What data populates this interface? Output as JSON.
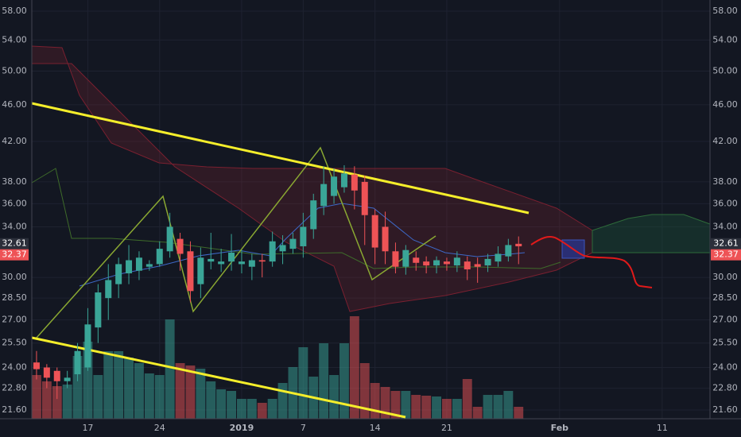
{
  "chart_data": {
    "type": "candlestick",
    "categories": [
      null,
      null,
      null,
      null,
      null,
      "17",
      null,
      null,
      null,
      null,
      null,
      null,
      "24",
      null,
      null,
      null,
      null,
      null,
      null,
      null,
      "2019",
      null,
      null,
      null,
      null,
      null,
      "7",
      null,
      null,
      null,
      null,
      null,
      null,
      "14",
      null,
      null,
      null,
      null,
      null,
      null,
      "21",
      null,
      null,
      null,
      null,
      null,
      null,
      null,
      null,
      null,
      null,
      "Feb",
      null,
      null,
      null,
      null,
      null,
      null,
      null,
      null,
      null,
      "11"
    ],
    "open": [
      24.3,
      24.0,
      23.8,
      23.2,
      23.6,
      24.0,
      26.5,
      28.5,
      29.5,
      30.3,
      30.5,
      30.8,
      31.0,
      32.0,
      33.0,
      32.0,
      29.5,
      31.2,
      31.0,
      31.2,
      31.0,
      30.8,
      31.3,
      31.2,
      32.0,
      32.2,
      32.4,
      33.8,
      35.8,
      36.7,
      37.5,
      38.7,
      38.0,
      35.0,
      34.0,
      32.0,
      30.8,
      31.5,
      31.2,
      30.9,
      31.2,
      30.9,
      31.2,
      31.0,
      30.9,
      31.2,
      31.6,
      32.6,
      null,
      null,
      null,
      null,
      null,
      null,
      null,
      null,
      null,
      null,
      null,
      null,
      null,
      null
    ],
    "high": [
      25.0,
      24.2,
      24.0,
      23.8,
      25.5,
      27.8,
      29.5,
      31.0,
      31.5,
      32.5,
      32.0,
      31.3,
      32.8,
      35.2,
      33.5,
      32.8,
      32.3,
      33.5,
      32.2,
      33.4,
      32.1,
      31.8,
      31.8,
      33.6,
      33.3,
      33.5,
      35.2,
      36.9,
      39.5,
      39.3,
      39.6,
      39.5,
      38.6,
      35.5,
      35.3,
      32.7,
      32.5,
      32.0,
      31.6,
      31.6,
      31.5,
      32.0,
      31.6,
      31.5,
      31.8,
      32.4,
      33.0,
      33.2,
      null,
      null,
      null,
      null,
      null,
      null,
      null,
      null,
      null,
      null,
      null,
      null,
      null,
      null
    ],
    "low": [
      23.3,
      22.8,
      22.2,
      22.8,
      23.2,
      23.8,
      25.5,
      27.0,
      28.5,
      29.5,
      29.8,
      30.5,
      30.8,
      31.5,
      30.5,
      28.2,
      28.5,
      30.6,
      30.4,
      30.5,
      30.3,
      29.8,
      30.0,
      30.8,
      31.0,
      31.8,
      31.5,
      33.0,
      35.0,
      36.0,
      37.0,
      35.5,
      32.5,
      31.0,
      31.0,
      30.3,
      30.2,
      30.5,
      30.3,
      30.3,
      30.5,
      30.4,
      29.8,
      29.6,
      30.4,
      30.8,
      31.2,
      31.0,
      null,
      null,
      null,
      null,
      null,
      null,
      null,
      null,
      null,
      null,
      null,
      null,
      null,
      null
    ],
    "close": [
      23.9,
      23.4,
      23.2,
      23.4,
      25.0,
      26.7,
      28.9,
      29.8,
      31.0,
      31.3,
      31.5,
      31.0,
      32.2,
      34.0,
      31.8,
      29.0,
      31.5,
      31.4,
      31.2,
      31.9,
      31.2,
      31.3,
      31.2,
      32.8,
      32.5,
      33.0,
      34.0,
      36.3,
      37.8,
      38.5,
      38.8,
      37.2,
      35.0,
      32.3,
      32.0,
      30.8,
      32.1,
      31.1,
      30.9,
      31.3,
      31.0,
      31.5,
      30.6,
      30.8,
      31.4,
      31.8,
      32.5,
      32.4,
      null,
      null,
      null,
      null,
      null,
      null,
      null,
      null,
      null,
      null,
      null,
      null,
      null,
      null
    ],
    "volume": [
      55,
      47,
      41,
      43,
      79,
      97,
      55,
      85,
      85,
      77,
      70,
      57,
      55,
      125,
      70,
      67,
      63,
      47,
      37,
      35,
      25,
      25,
      20,
      25,
      45,
      65,
      90,
      53,
      95,
      55,
      95,
      129,
      70,
      45,
      40,
      35,
      35,
      30,
      29,
      28,
      25,
      25,
      50,
      15,
      30,
      30,
      35,
      15,
      null,
      null,
      null,
      null,
      null,
      null,
      null,
      null,
      null,
      null,
      null,
      null,
      null,
      null
    ],
    "volume_lim": [
      0,
      527
    ],
    "up_color": "#3aa597",
    "down_color": "#ee5356",
    "ylim": [
      21.14,
      59.62
    ],
    "log_scale": true,
    "grid": true,
    "yticks": [
      {
        "value": 21.6,
        "label": "21.60"
      },
      {
        "value": 22.8,
        "label": "22.80"
      },
      {
        "value": 24,
        "label": "24.00"
      },
      {
        "value": 25.5,
        "label": "25.50"
      },
      {
        "value": 27,
        "label": "27.00"
      },
      {
        "value": 28.5,
        "label": "28.50"
      },
      {
        "value": 30,
        "label": "30.00"
      },
      {
        "value": 34,
        "label": "34.00"
      },
      {
        "value": 36,
        "label": "36.00"
      },
      {
        "value": 38,
        "label": "38.00"
      },
      {
        "value": 42,
        "label": "42.00"
      },
      {
        "value": 46,
        "label": "46.00"
      },
      {
        "value": 50,
        "label": "50.00"
      },
      {
        "value": 54,
        "label": "54.00"
      },
      {
        "value": 58,
        "label": "58.00"
      }
    ],
    "price_labels": [
      {
        "value": 32.61,
        "label": "32.61",
        "color": "#2b2f3a"
      },
      {
        "value": 32.37,
        "label": "32.37",
        "color": "#ee5356"
      }
    ]
  }
}
